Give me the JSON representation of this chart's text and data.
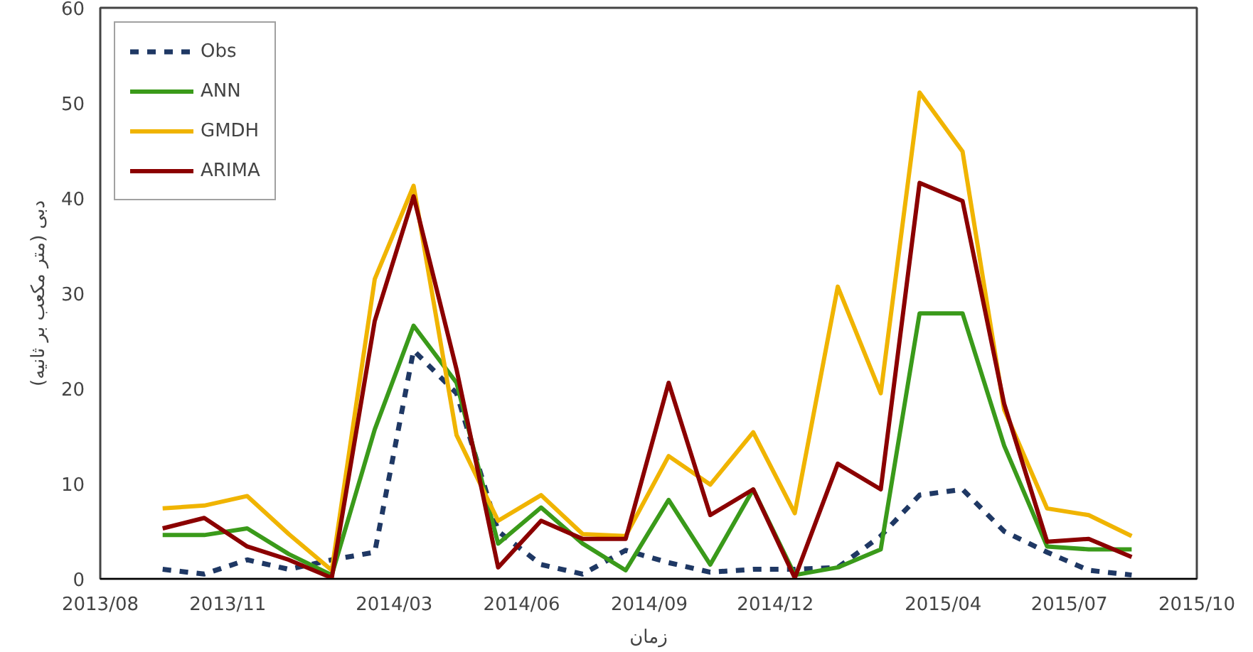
{
  "chart_data": {
    "type": "line",
    "xlabel": "زمان",
    "ylabel": "دبی (متر مکعب بر ثانیه)",
    "x": [
      "2013-09-15",
      "2013-10-15",
      "2013-11-15",
      "2013-12-15",
      "2014-01-15",
      "2014-02-15",
      "2014-03-15",
      "2014-04-15",
      "2014-05-15",
      "2014-06-15",
      "2014-07-15",
      "2014-08-15",
      "2014-09-15",
      "2014-10-15",
      "2014-11-15",
      "2014-12-15",
      "2015-01-15",
      "2015-02-15",
      "2015-03-15",
      "2015-04-15",
      "2015-05-15",
      "2015-06-15",
      "2015-07-15",
      "2015-08-15"
    ],
    "series": [
      {
        "name": "Obs",
        "color": "#1f3864",
        "line_style": "dashed",
        "values": [
          1,
          0.5,
          2,
          1,
          2,
          2.8,
          24,
          19.5,
          5,
          1.5,
          0.5,
          3,
          1.7,
          0.7,
          1,
          1,
          1.2,
          4.5,
          8.8,
          9.4,
          5,
          2.8,
          0.9,
          0.4
        ]
      },
      {
        "name": "ANN",
        "color": "#3a9a1a",
        "line_style": "solid",
        "values": [
          4.6,
          4.6,
          5.3,
          2.6,
          0.4,
          15.7,
          26.6,
          20.6,
          3.7,
          7.5,
          3.7,
          0.9,
          8.3,
          1.5,
          9.4,
          0.4,
          1.2,
          3.1,
          27.9,
          27.9,
          14,
          3.4,
          3.1,
          3.1
        ]
      },
      {
        "name": "GMDH",
        "color": "#f0b400",
        "line_style": "solid",
        "values": [
          7.4,
          7.7,
          8.7,
          4.7,
          0.9,
          31.5,
          41.3,
          15.1,
          6.1,
          8.8,
          4.7,
          4.5,
          12.9,
          9.9,
          15.4,
          6.9,
          30.7,
          19.5,
          51.1,
          44.9,
          17.8,
          7.4,
          6.7,
          4.5
        ]
      },
      {
        "name": "ARIMA",
        "color": "#8b0000",
        "line_style": "solid",
        "values": [
          5.3,
          6.4,
          3.4,
          2,
          0.1,
          27.1,
          40.2,
          22,
          1.2,
          6.1,
          4.2,
          4.2,
          20.6,
          6.7,
          9.4,
          0.1,
          12.1,
          9.4,
          41.6,
          39.7,
          18.4,
          3.9,
          4.2,
          2.3
        ]
      }
    ],
    "xlim": [
      "2013-08-01",
      "2015-10-01"
    ],
    "xticks": [
      {
        "value": "2013-08-01",
        "label": "2013/08"
      },
      {
        "value": "2013-11-01",
        "label": "2013/11"
      },
      {
        "value": "2014-03-01",
        "label": "2014/03"
      },
      {
        "value": "2014-06-01",
        "label": "2014/06"
      },
      {
        "value": "2014-09-01",
        "label": "2014/09"
      },
      {
        "value": "2014-12-01",
        "label": "2014/12"
      },
      {
        "value": "2015-04-01",
        "label": "2015/04"
      },
      {
        "value": "2015-07-01",
        "label": "2015/07"
      },
      {
        "value": "2015-10-01",
        "label": "2015/10"
      }
    ],
    "ylim": [
      0,
      60
    ],
    "yticks": [
      0,
      10,
      20,
      30,
      40,
      50,
      60
    ],
    "grid": false,
    "legend": "top left",
    "marker": "none"
  }
}
